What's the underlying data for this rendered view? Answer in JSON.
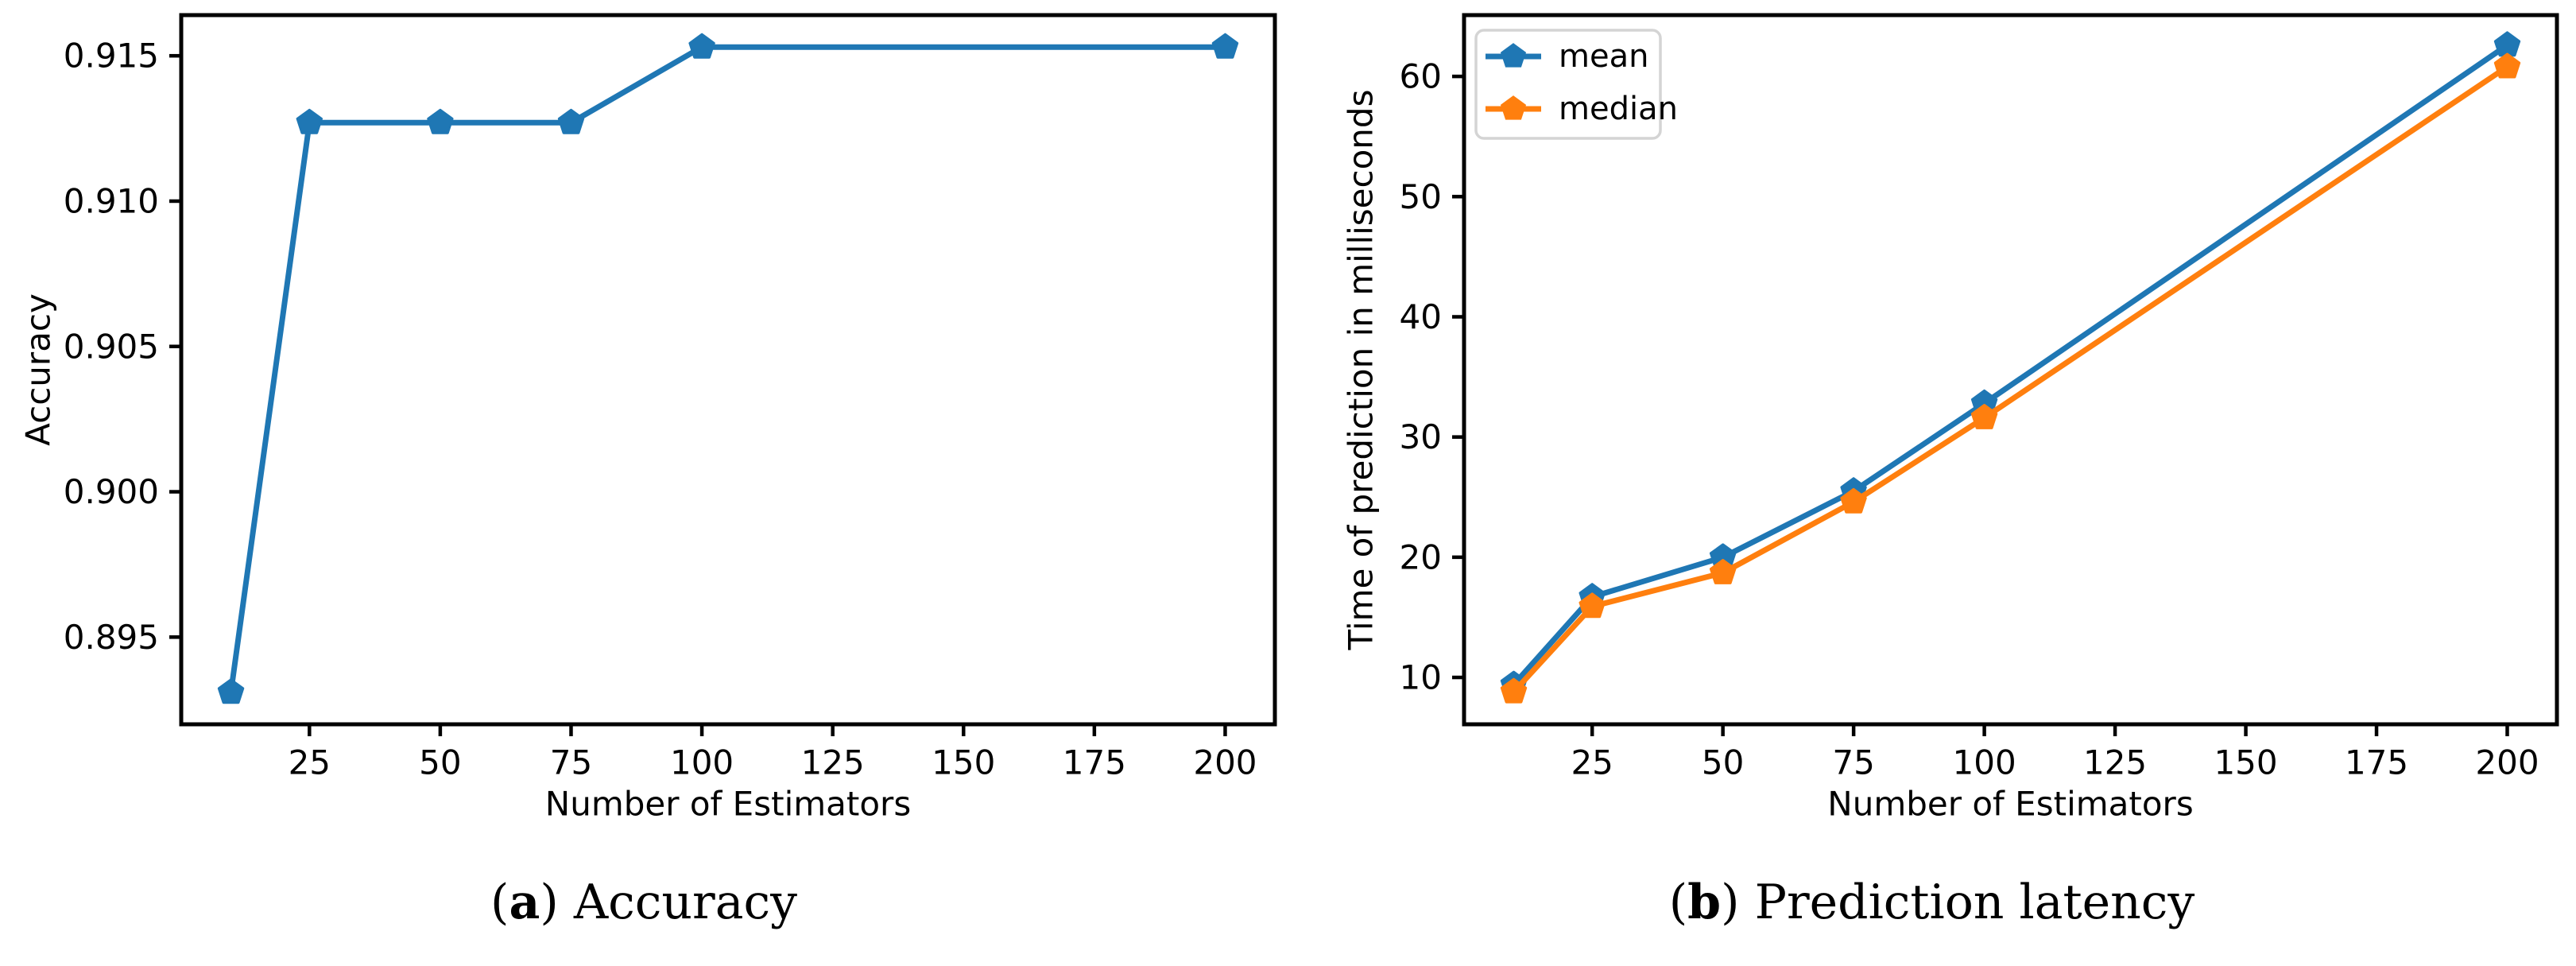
{
  "figure": {
    "background": "#ffffff",
    "captions": [
      {
        "letter": "a",
        "text": "Accuracy"
      },
      {
        "letter": "b",
        "text": "Prediction latency"
      }
    ]
  },
  "colors": {
    "series_blue": "#1f77b4",
    "series_orange": "#ff7f0e",
    "axis": "#000000",
    "legend_border": "#d4d4d4",
    "legend_background": "#ffffff"
  },
  "chart_data": [
    {
      "type": "line",
      "name": "accuracy-chart",
      "title": "",
      "xlabel": "Number of Estimators",
      "ylabel": "Accuracy",
      "x": [
        10,
        25,
        50,
        75,
        100,
        200
      ],
      "series": [
        {
          "name": "accuracy",
          "color": "#1f77b4",
          "marker": "pentagon",
          "values": [
            0.8931,
            0.9127,
            0.9127,
            0.9127,
            0.9153,
            0.9153
          ]
        }
      ],
      "xlim": [
        0.5,
        209.5
      ],
      "ylim": [
        0.892,
        0.9164
      ],
      "xticks": {
        "values": [
          25,
          50,
          75,
          100,
          125,
          150,
          175,
          200
        ],
        "labels": [
          "25",
          "50",
          "75",
          "100",
          "125",
          "150",
          "175",
          "200"
        ]
      },
      "yticks": {
        "values": [
          0.895,
          0.9,
          0.905,
          0.91,
          0.915
        ],
        "labels": [
          "0.895",
          "0.900",
          "0.905",
          "0.910",
          "0.915"
        ]
      },
      "grid": false,
      "legend": null
    },
    {
      "type": "line",
      "name": "latency-chart",
      "title": "",
      "xlabel": "Number of Estimators",
      "ylabel": "Time of prediction in milliseconds",
      "x": [
        10,
        25,
        50,
        75,
        100,
        200
      ],
      "series": [
        {
          "name": "mean",
          "color": "#1f77b4",
          "marker": "pentagon",
          "values": [
            9.4,
            16.7,
            20.0,
            25.5,
            32.8,
            62.6
          ]
        },
        {
          "name": "median",
          "color": "#ff7f0e",
          "marker": "pentagon",
          "values": [
            8.8,
            15.9,
            18.7,
            24.6,
            31.6,
            60.8
          ]
        }
      ],
      "xlim": [
        0.5,
        209.5
      ],
      "ylim": [
        6.1,
        65.1
      ],
      "xticks": {
        "values": [
          25,
          50,
          75,
          100,
          125,
          150,
          175,
          200
        ],
        "labels": [
          "25",
          "50",
          "75",
          "100",
          "125",
          "150",
          "175",
          "200"
        ]
      },
      "yticks": {
        "values": [
          10,
          20,
          30,
          40,
          50,
          60
        ],
        "labels": [
          "10",
          "20",
          "30",
          "40",
          "50",
          "60"
        ]
      },
      "grid": false,
      "legend": {
        "position": "upper-left",
        "entries": [
          "mean",
          "median"
        ]
      }
    }
  ]
}
